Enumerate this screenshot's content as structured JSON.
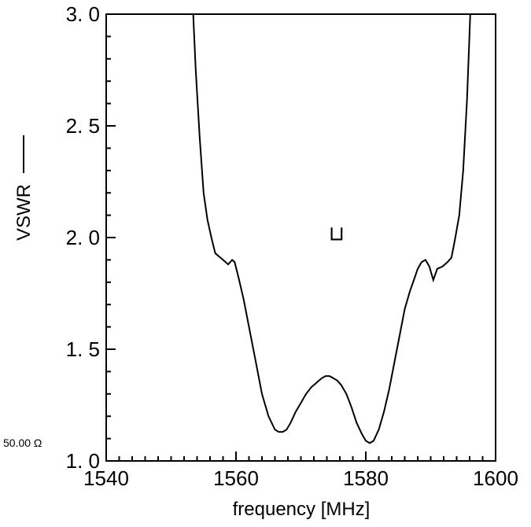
{
  "chart_data": {
    "type": "line",
    "xlabel": "frequency  [MHz]",
    "ylabel": "VSWR",
    "xlim": [
      1540,
      1600
    ],
    "ylim": [
      1.0,
      3.0
    ],
    "x_ticks": [
      1540,
      1560,
      1580,
      1600
    ],
    "x_tick_labels": [
      "1540",
      "1560",
      "1580",
      "1600"
    ],
    "x_minor_step": 2,
    "y_ticks": [
      1.0,
      1.5,
      2.0,
      2.5,
      3.0
    ],
    "y_tick_labels": [
      "1. 0",
      "1. 5",
      "2. 0",
      "2. 5",
      "3. 0"
    ],
    "y_minor_step": 0.1,
    "reference_label": "50.00 Ω",
    "grid": false,
    "legend": "none",
    "marker": {
      "x": 1575.5,
      "y": 2.02,
      "symbol": "⊔"
    },
    "series": [
      {
        "color": "#000000",
        "x": [
          1553.4,
          1553.8,
          1554.4,
          1555.0,
          1555.6,
          1556.2,
          1556.8,
          1557.2,
          1558.0,
          1558.8,
          1559.4,
          1559.8,
          1560.4,
          1561.2,
          1562.0,
          1563.0,
          1564.0,
          1565.0,
          1566.0,
          1566.6,
          1567.2,
          1567.8,
          1568.4,
          1569.2,
          1570.0,
          1570.8,
          1571.6,
          1572.4,
          1573.2,
          1573.8,
          1574.4,
          1575.0,
          1575.6,
          1576.2,
          1577.0,
          1577.8,
          1578.6,
          1579.4,
          1580.0,
          1580.6,
          1581.2,
          1582.0,
          1582.8,
          1583.6,
          1584.4,
          1585.2,
          1586.0,
          1586.8,
          1587.4,
          1588.0,
          1588.6,
          1589.2,
          1589.8,
          1590.4,
          1591.0,
          1591.8,
          1592.6,
          1593.2,
          1593.8,
          1594.4,
          1595.0,
          1595.6,
          1596.1
        ],
        "y": [
          3.0,
          2.75,
          2.45,
          2.2,
          2.08,
          2.0,
          1.93,
          1.92,
          1.9,
          1.88,
          1.9,
          1.89,
          1.82,
          1.72,
          1.6,
          1.45,
          1.3,
          1.2,
          1.14,
          1.13,
          1.13,
          1.14,
          1.17,
          1.22,
          1.26,
          1.3,
          1.33,
          1.35,
          1.37,
          1.38,
          1.38,
          1.37,
          1.36,
          1.34,
          1.3,
          1.24,
          1.17,
          1.12,
          1.09,
          1.08,
          1.09,
          1.14,
          1.22,
          1.32,
          1.44,
          1.56,
          1.68,
          1.76,
          1.81,
          1.86,
          1.89,
          1.9,
          1.87,
          1.81,
          1.86,
          1.87,
          1.89,
          1.91,
          2.0,
          2.1,
          2.3,
          2.62,
          3.0
        ]
      }
    ]
  }
}
